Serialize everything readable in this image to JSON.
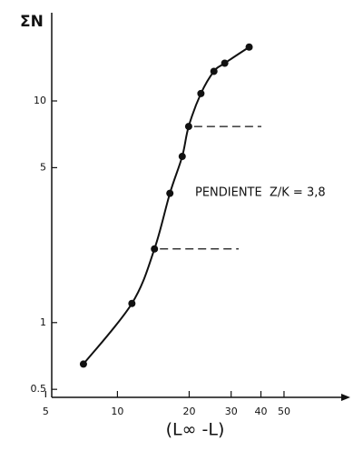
{
  "chart_data": {
    "type": "line",
    "y_label": "ΣN",
    "x_label": "(L∞ -L)",
    "annotation": "PENDIENTE  Z/K = 3,8",
    "x": [
      7.2,
      11.5,
      14.3,
      16.6,
      18.7,
      19.9,
      22.4,
      25.4,
      28.2,
      35.7
    ],
    "values": [
      0.65,
      1.22,
      2.15,
      3.83,
      5.62,
      7.67,
      10.8,
      13.6,
      14.8,
      17.5
    ],
    "color": "#111111",
    "log_x": true,
    "log_y": true,
    "xlim": [
      5.3,
      90
    ],
    "xticks": [
      5,
      10,
      20,
      30,
      40,
      50
    ],
    "ylim": [
      0.46,
      25
    ],
    "yticks": [
      0.5,
      1,
      5,
      10
    ]
  }
}
